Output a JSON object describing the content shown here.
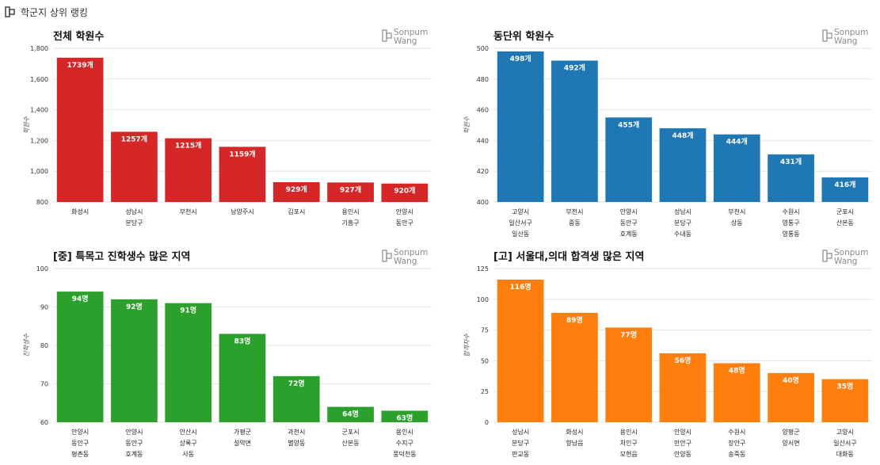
{
  "header": {
    "title": "학군지 상위 랭킹",
    "icon": "logo-icon"
  },
  "logo": {
    "line1": "Sonpum",
    "line2": "Wang"
  },
  "chart_data": [
    {
      "type": "bar",
      "title": "전체 학원수",
      "ylabel": "학원수",
      "color": "#d62728",
      "ylim": [
        800,
        1800
      ],
      "yticks": [
        800,
        1000,
        1200,
        1400,
        1600,
        1800
      ],
      "ytick_labels": [
        "800",
        "1,000",
        "1,200",
        "1,400",
        "1,600",
        "1,800"
      ],
      "categories": [
        [
          "화성시"
        ],
        [
          "성남시",
          "분당구"
        ],
        [
          "부천시"
        ],
        [
          "남양주시"
        ],
        [
          "김포시"
        ],
        [
          "용인시",
          "기흥구"
        ],
        [
          "안양시",
          "동안구"
        ]
      ],
      "values": [
        1739,
        1257,
        1215,
        1159,
        929,
        927,
        920
      ],
      "labels": [
        "1739개",
        "1257개",
        "1215개",
        "1159개",
        "929개",
        "927개",
        "920개"
      ]
    },
    {
      "type": "bar",
      "title": "동단위 학원수",
      "ylabel": "학원수",
      "color": "#1f77b4",
      "ylim": [
        400,
        500
      ],
      "yticks": [
        400,
        420,
        440,
        460,
        480,
        500
      ],
      "ytick_labels": [
        "400",
        "420",
        "440",
        "460",
        "480",
        "500"
      ],
      "categories": [
        [
          "고양시",
          "일산서구",
          "일산동"
        ],
        [
          "부천시",
          "중동"
        ],
        [
          "안양시",
          "동안구",
          "호계동"
        ],
        [
          "성남시",
          "분당구",
          "수내동"
        ],
        [
          "부천시",
          "상동"
        ],
        [
          "수원시",
          "영통구",
          "영통동"
        ],
        [
          "군포시",
          "산본동"
        ]
      ],
      "values": [
        498,
        492,
        455,
        448,
        444,
        431,
        416
      ],
      "labels": [
        "498개",
        "492개",
        "455개",
        "448개",
        "444개",
        "431개",
        "416개"
      ]
    },
    {
      "type": "bar",
      "title": "[중] 특목고 진학생수 많은 지역",
      "ylabel": "진학생수",
      "color": "#2ca02c",
      "ylim": [
        60,
        100
      ],
      "yticks": [
        60,
        70,
        80,
        90,
        100
      ],
      "ytick_labels": [
        "60",
        "70",
        "80",
        "90",
        "100"
      ],
      "categories": [
        [
          "안양시",
          "동안구",
          "평촌동"
        ],
        [
          "안양시",
          "동안구",
          "호계동"
        ],
        [
          "안산시",
          "상록구",
          "사동"
        ],
        [
          "가평군",
          "설악면"
        ],
        [
          "과천시",
          "별양동"
        ],
        [
          "군포시",
          "산본동"
        ],
        [
          "용인시",
          "수지구",
          "풍덕천동"
        ]
      ],
      "values": [
        94,
        92,
        91,
        83,
        72,
        64,
        63
      ],
      "labels": [
        "94명",
        "92명",
        "91명",
        "83명",
        "72명",
        "64명",
        "63명"
      ]
    },
    {
      "type": "bar",
      "title": "[고] 서울대,의대 합격생 많은 지역",
      "ylabel": "합격자수",
      "color": "#ff7f0e",
      "ylim": [
        0,
        125
      ],
      "yticks": [
        0,
        25,
        50,
        75,
        100,
        125
      ],
      "ytick_labels": [
        "0",
        "25",
        "50",
        "75",
        "100",
        "125"
      ],
      "categories": [
        [
          "성남시",
          "분당구",
          "판교동"
        ],
        [
          "화성시",
          "향남읍"
        ],
        [
          "용인시",
          "처인구",
          "모현읍"
        ],
        [
          "안양시",
          "만안구",
          "안양동"
        ],
        [
          "수원시",
          "장안구",
          "송죽동"
        ],
        [
          "양평군",
          "양서면"
        ],
        [
          "고양시",
          "일산서구",
          "대화동"
        ]
      ],
      "values": [
        116,
        89,
        77,
        56,
        48,
        40,
        35
      ],
      "labels": [
        "116명",
        "89명",
        "77명",
        "56명",
        "48명",
        "40명",
        "35명"
      ]
    }
  ]
}
